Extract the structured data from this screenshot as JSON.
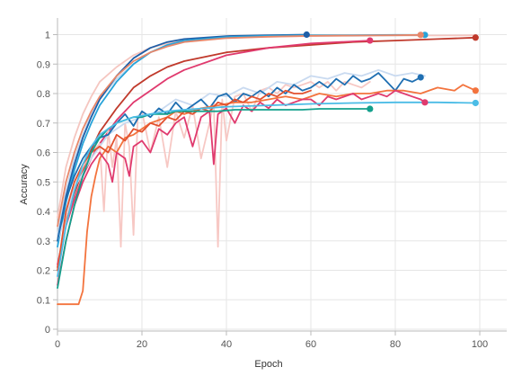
{
  "chart_data": {
    "type": "line",
    "title": "",
    "xlabel": "Epoch",
    "ylabel": "Accuracy",
    "xlim": [
      0,
      100
    ],
    "ylim": [
      0,
      1.05
    ],
    "x_ticks": [
      0,
      20,
      40,
      60,
      80,
      100
    ],
    "y_ticks": [
      0,
      0.1,
      0.2,
      0.3,
      0.4,
      0.5,
      0.6,
      0.7,
      0.8,
      0.9,
      1
    ],
    "y_tick_labels": [
      "0",
      "0.1",
      "0.2",
      "0.3",
      "0.4",
      "0.5",
      "0.6",
      "0.7",
      "0.8",
      "0.9",
      "1"
    ],
    "grid": true,
    "legend": "none",
    "series": [
      {
        "color": "#f5c6c0",
        "end_marker": false,
        "x": [
          0,
          2,
          4,
          6,
          8,
          10,
          14,
          18,
          22,
          26,
          30,
          40,
          50,
          60,
          70,
          80,
          90,
          99
        ],
        "y": [
          0.38,
          0.55,
          0.65,
          0.73,
          0.79,
          0.84,
          0.89,
          0.93,
          0.955,
          0.97,
          0.98,
          0.99,
          0.993,
          0.995,
          0.996,
          0.997,
          0.997,
          0.998
        ]
      },
      {
        "color": "#c5d8ee",
        "end_marker": false,
        "x": [
          0,
          2,
          4,
          6,
          8,
          10,
          14,
          18,
          22,
          26,
          30,
          40,
          50,
          60,
          70,
          80,
          87
        ],
        "y": [
          0.32,
          0.47,
          0.58,
          0.66,
          0.73,
          0.78,
          0.85,
          0.9,
          0.94,
          0.96,
          0.975,
          0.99,
          0.995,
          0.997,
          0.998,
          0.998,
          0.999
        ]
      },
      {
        "color": "#1f5fa8",
        "end_marker": true,
        "x": [
          0,
          2,
          4,
          6,
          8,
          10,
          14,
          18,
          22,
          26,
          30,
          40,
          50,
          59
        ],
        "y": [
          0.3,
          0.45,
          0.56,
          0.65,
          0.72,
          0.78,
          0.86,
          0.92,
          0.955,
          0.975,
          0.985,
          0.995,
          0.998,
          1.0
        ]
      },
      {
        "color": "#27a3d9",
        "end_marker": true,
        "x": [
          0,
          2,
          4,
          6,
          8,
          10,
          14,
          18,
          22,
          26,
          30,
          40,
          50,
          60,
          70,
          80,
          87
        ],
        "y": [
          0.28,
          0.43,
          0.54,
          0.63,
          0.7,
          0.76,
          0.84,
          0.9,
          0.94,
          0.965,
          0.98,
          0.992,
          0.996,
          0.998,
          0.998,
          0.999,
          0.999
        ]
      },
      {
        "color": "#e8876a",
        "end_marker": true,
        "x": [
          0,
          2,
          4,
          6,
          8,
          10,
          14,
          18,
          22,
          26,
          30,
          40,
          50,
          60,
          70,
          80,
          86
        ],
        "y": [
          0.35,
          0.5,
          0.6,
          0.68,
          0.74,
          0.79,
          0.86,
          0.91,
          0.94,
          0.96,
          0.975,
          0.988,
          0.993,
          0.996,
          0.997,
          0.998,
          0.999
        ]
      },
      {
        "color": "#c0392b",
        "end_marker": true,
        "x": [
          0,
          2,
          4,
          6,
          8,
          10,
          14,
          18,
          22,
          26,
          30,
          40,
          50,
          60,
          70,
          80,
          90,
          99
        ],
        "y": [
          0.21,
          0.36,
          0.46,
          0.54,
          0.61,
          0.67,
          0.75,
          0.82,
          0.86,
          0.89,
          0.91,
          0.94,
          0.955,
          0.965,
          0.975,
          0.98,
          0.985,
          0.99
        ]
      },
      {
        "color": "#e03a6e",
        "end_marker": true,
        "x": [
          0,
          2,
          4,
          6,
          8,
          10,
          14,
          18,
          22,
          26,
          30,
          36,
          40,
          50,
          60,
          74
        ],
        "y": [
          0.22,
          0.35,
          0.44,
          0.52,
          0.58,
          0.63,
          0.71,
          0.77,
          0.81,
          0.85,
          0.88,
          0.91,
          0.93,
          0.955,
          0.97,
          0.98
        ]
      },
      {
        "color": "#f7c8c4",
        "end_marker": false,
        "x": [
          0,
          2,
          4,
          6,
          8,
          10,
          11,
          12,
          13,
          14,
          15,
          16,
          17,
          18,
          19,
          20,
          22,
          24,
          26,
          28,
          30,
          32,
          34,
          36,
          37,
          38,
          39,
          40,
          42,
          44,
          46,
          48,
          50,
          52,
          54,
          56,
          58,
          60,
          62,
          64,
          66,
          68,
          70,
          72,
          74
        ],
        "y": [
          0.18,
          0.38,
          0.48,
          0.55,
          0.6,
          0.63,
          0.4,
          0.68,
          0.55,
          0.65,
          0.28,
          0.7,
          0.62,
          0.32,
          0.72,
          0.74,
          0.6,
          0.72,
          0.55,
          0.74,
          0.65,
          0.76,
          0.58,
          0.7,
          0.77,
          0.28,
          0.78,
          0.64,
          0.79,
          0.8,
          0.74,
          0.81,
          0.82,
          0.8,
          0.83,
          0.82,
          0.83,
          0.84,
          0.82,
          0.84,
          0.81,
          0.84,
          0.83,
          0.82,
          0.84
        ]
      },
      {
        "color": "#c9daf0",
        "end_marker": false,
        "x": [
          0,
          4,
          8,
          12,
          16,
          20,
          24,
          28,
          32,
          36,
          40,
          44,
          48,
          52,
          56,
          60,
          64,
          68,
          72,
          76,
          80,
          84,
          87
        ],
        "y": [
          0.3,
          0.48,
          0.58,
          0.66,
          0.7,
          0.72,
          0.74,
          0.78,
          0.76,
          0.8,
          0.79,
          0.82,
          0.8,
          0.84,
          0.83,
          0.86,
          0.85,
          0.87,
          0.86,
          0.88,
          0.86,
          0.87,
          0.86
        ]
      },
      {
        "color": "#1f6fb2",
        "end_marker": true,
        "x": [
          0,
          2,
          4,
          6,
          8,
          10,
          12,
          14,
          16,
          18,
          20,
          22,
          24,
          26,
          28,
          30,
          32,
          34,
          36,
          38,
          40,
          42,
          44,
          46,
          48,
          50,
          52,
          54,
          56,
          58,
          60,
          62,
          64,
          66,
          68,
          70,
          72,
          74,
          76,
          78,
          80,
          82,
          84,
          86
        ],
        "y": [
          0.3,
          0.44,
          0.52,
          0.58,
          0.62,
          0.65,
          0.66,
          0.7,
          0.73,
          0.69,
          0.74,
          0.72,
          0.75,
          0.73,
          0.77,
          0.74,
          0.76,
          0.78,
          0.75,
          0.79,
          0.8,
          0.77,
          0.8,
          0.79,
          0.81,
          0.79,
          0.82,
          0.8,
          0.83,
          0.81,
          0.82,
          0.84,
          0.82,
          0.85,
          0.83,
          0.86,
          0.84,
          0.85,
          0.87,
          0.84,
          0.81,
          0.85,
          0.84,
          0.855
        ]
      },
      {
        "color": "#f3733d",
        "end_marker": true,
        "x": [
          0,
          2,
          4,
          5,
          6,
          7,
          8,
          9,
          10,
          12,
          14,
          16,
          18,
          20,
          22,
          24,
          26,
          28,
          30,
          34,
          38,
          42,
          46,
          50,
          54,
          58,
          62,
          66,
          70,
          74,
          78,
          82,
          86,
          90,
          94,
          96,
          99
        ],
        "y": [
          0.085,
          0.085,
          0.085,
          0.085,
          0.13,
          0.33,
          0.45,
          0.52,
          0.58,
          0.62,
          0.6,
          0.65,
          0.66,
          0.68,
          0.7,
          0.71,
          0.72,
          0.74,
          0.73,
          0.75,
          0.76,
          0.77,
          0.77,
          0.78,
          0.79,
          0.78,
          0.8,
          0.79,
          0.8,
          0.8,
          0.81,
          0.81,
          0.8,
          0.82,
          0.81,
          0.83,
          0.81
        ]
      },
      {
        "color": "#e2512f",
        "end_marker": false,
        "x": [
          0,
          2,
          4,
          6,
          8,
          10,
          12,
          14,
          16,
          18,
          20,
          22,
          24,
          26,
          28,
          30,
          32,
          34,
          36,
          38,
          40,
          42,
          44,
          46,
          48,
          50,
          52,
          54,
          56,
          58,
          60
        ],
        "y": [
          0.2,
          0.4,
          0.5,
          0.56,
          0.6,
          0.62,
          0.6,
          0.66,
          0.64,
          0.68,
          0.67,
          0.7,
          0.69,
          0.72,
          0.71,
          0.74,
          0.73,
          0.75,
          0.74,
          0.77,
          0.76,
          0.78,
          0.77,
          0.79,
          0.78,
          0.8,
          0.79,
          0.81,
          0.8,
          0.8,
          0.81
        ]
      },
      {
        "color": "#e03a6e",
        "end_marker": true,
        "x": [
          0,
          2,
          4,
          6,
          8,
          10,
          12,
          13,
          14,
          16,
          17,
          18,
          20,
          22,
          24,
          26,
          28,
          30,
          32,
          34,
          36,
          37,
          38,
          40,
          42,
          44,
          46,
          48,
          50,
          52,
          54,
          56,
          58,
          60,
          62,
          64,
          66,
          68,
          70,
          72,
          74,
          76,
          78,
          80,
          82,
          84,
          86,
          87
        ],
        "y": [
          0.15,
          0.3,
          0.42,
          0.5,
          0.56,
          0.6,
          0.56,
          0.5,
          0.6,
          0.58,
          0.52,
          0.62,
          0.64,
          0.6,
          0.68,
          0.66,
          0.7,
          0.72,
          0.62,
          0.72,
          0.74,
          0.56,
          0.73,
          0.75,
          0.7,
          0.76,
          0.74,
          0.77,
          0.75,
          0.78,
          0.76,
          0.77,
          0.78,
          0.78,
          0.76,
          0.79,
          0.78,
          0.79,
          0.8,
          0.78,
          0.79,
          0.8,
          0.79,
          0.81,
          0.8,
          0.79,
          0.78,
          0.77
        ]
      },
      {
        "color": "#13a08c",
        "end_marker": true,
        "x": [
          0,
          2,
          4,
          6,
          8,
          10,
          12,
          14,
          16,
          18,
          20,
          22,
          24,
          26,
          28,
          30,
          34,
          38,
          42,
          46,
          50,
          54,
          58,
          62,
          66,
          70,
          74
        ],
        "y": [
          0.14,
          0.3,
          0.42,
          0.52,
          0.6,
          0.65,
          0.68,
          0.7,
          0.71,
          0.72,
          0.72,
          0.73,
          0.73,
          0.73,
          0.74,
          0.74,
          0.74,
          0.74,
          0.745,
          0.745,
          0.745,
          0.745,
          0.745,
          0.748,
          0.748,
          0.748,
          0.748
        ]
      },
      {
        "color": "#4bbce6",
        "end_marker": true,
        "x": [
          0,
          2,
          4,
          6,
          8,
          10,
          14,
          18,
          22,
          26,
          30,
          40,
          50,
          60,
          70,
          80,
          90,
          99
        ],
        "y": [
          0.18,
          0.35,
          0.47,
          0.56,
          0.62,
          0.66,
          0.7,
          0.72,
          0.73,
          0.74,
          0.745,
          0.755,
          0.76,
          0.765,
          0.768,
          0.77,
          0.77,
          0.768
        ]
      }
    ]
  }
}
